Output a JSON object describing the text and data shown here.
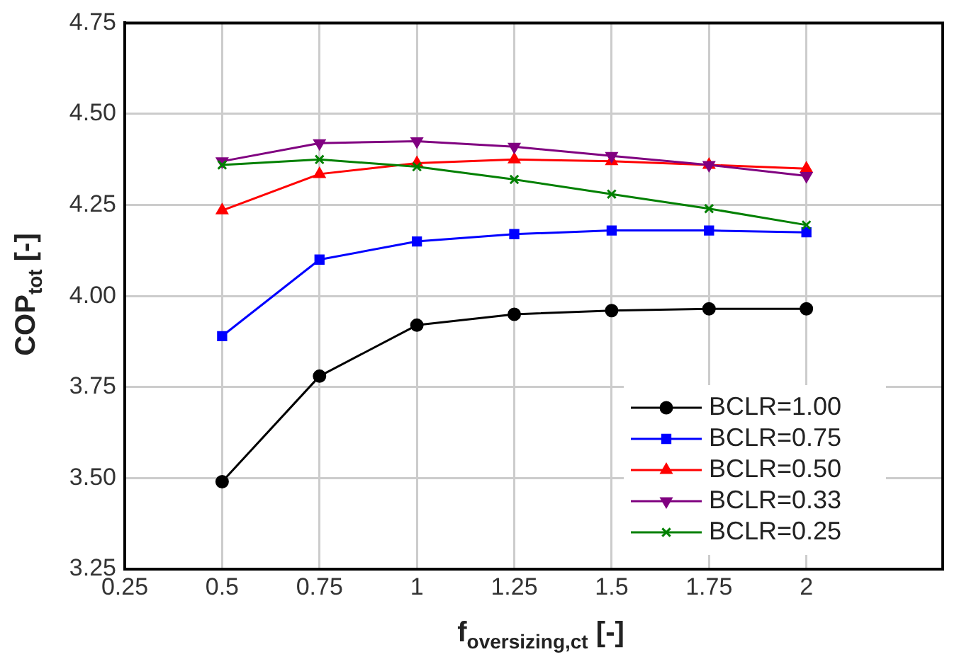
{
  "chart_data": {
    "type": "line",
    "xlabel": "f$_{oversizing,ct}$ [-]",
    "ylabel": "COP$_{tot}$ [-]",
    "x": [
      0.5,
      0.75,
      1,
      1.25,
      1.5,
      1.75,
      2
    ],
    "xlim": [
      0.25,
      2.35
    ],
    "xticks": [
      0.25,
      0.5,
      0.75,
      1,
      1.25,
      1.5,
      1.75,
      2
    ],
    "ylim": [
      3.25,
      4.75
    ],
    "yticks": [
      {
        "value": 3.25,
        "label": "3.25"
      },
      {
        "value": 3.5,
        "label": "3.50"
      },
      {
        "value": 3.75,
        "label": "3.75"
      },
      {
        "value": 4,
        "label": "4.00"
      },
      {
        "value": 4.25,
        "label": "4.25"
      },
      {
        "value": 4.5,
        "label": "4.50"
      },
      {
        "value": 4.75,
        "label": "4.75"
      }
    ],
    "grid": true,
    "legend": "bottom right",
    "line_style": "solid",
    "series": [
      {
        "name": "BCLR=1.00",
        "color": "#000000",
        "marker": "circle",
        "values": [
          3.49,
          3.78,
          3.92,
          3.95,
          3.96,
          3.965,
          3.965
        ]
      },
      {
        "name": "BCLR=0.75",
        "color": "#0000ff",
        "marker": "square",
        "values": [
          3.89,
          4.1,
          4.15,
          4.17,
          4.18,
          4.18,
          4.175
        ]
      },
      {
        "name": "BCLR=0.50",
        "color": "#ff0000",
        "marker": "triangle",
        "values": [
          4.235,
          4.335,
          4.365,
          4.375,
          4.37,
          4.36,
          4.35
        ]
      },
      {
        "name": "BCLR=0.33",
        "color": "#800080",
        "marker": "triangle-down",
        "values": [
          4.37,
          4.42,
          4.425,
          4.41,
          4.385,
          4.36,
          4.33
        ]
      },
      {
        "name": "BCLR=0.25",
        "color": "#008000",
        "marker": "cross",
        "values": [
          4.36,
          4.375,
          4.355,
          4.32,
          4.28,
          4.24,
          4.195
        ]
      }
    ]
  }
}
